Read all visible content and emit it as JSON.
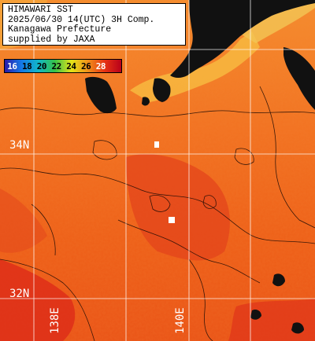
{
  "header": {
    "line1": "HIMAWARI SST",
    "line2": "2025/06/30 14(UTC) 3H Comp.",
    "line3": "Kanagawa Prefecture",
    "line4": "supplied by JAXA"
  },
  "colorbar": {
    "labels": [
      "16",
      "18",
      "20",
      "22",
      "24",
      "26",
      "28"
    ],
    "colors": [
      "#2a1aa8",
      "#1478e6",
      "#11b6c9",
      "#35c24a",
      "#e3e318",
      "#f0901a",
      "#e63214",
      "#b8001a"
    ]
  },
  "grid": {
    "lat_labels": [
      "34N",
      "32N"
    ],
    "lon_labels": [
      "138E",
      "140E"
    ],
    "line_color": "#ffffff"
  },
  "colors": {
    "land": "#111111",
    "no_data": "#ffffff",
    "sea_warm": "#f06a18",
    "sea_hot": "#e2401a",
    "coast_cool": "#f5c24a"
  }
}
